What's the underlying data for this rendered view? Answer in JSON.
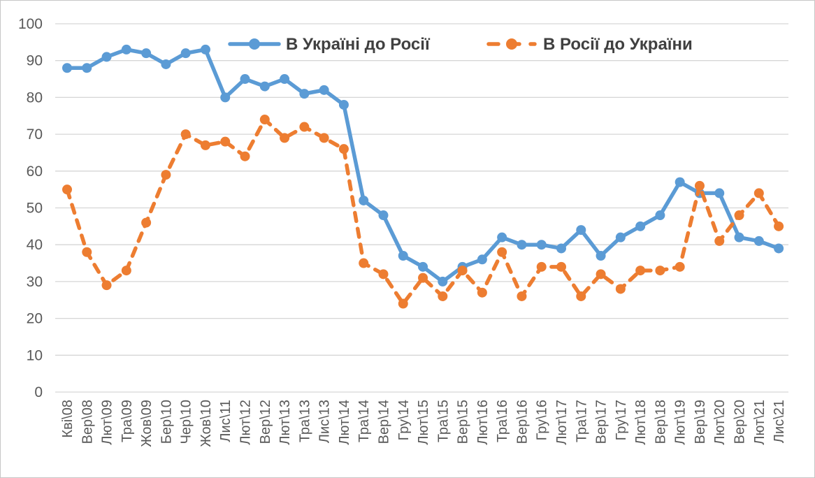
{
  "chart_data": {
    "type": "line",
    "title": "",
    "xlabel": "",
    "ylabel": "",
    "ylim": [
      0,
      100
    ],
    "yticks": [
      0,
      10,
      20,
      30,
      40,
      50,
      60,
      70,
      80,
      90,
      100
    ],
    "grid": "horizontal-on",
    "grid_color": "#d6d6d6",
    "axis_text_color": "#595959",
    "legend_text_color": "#404040",
    "legend_position": "top-inside",
    "categories": [
      "Кві\\08",
      "Вер\\08",
      "Лют\\09",
      "Тра\\09",
      "Жов\\09",
      "Бер\\10",
      "Чер\\10",
      "Жов\\10",
      "Лис\\11",
      "Лют\\12",
      "Вер\\12",
      "Лют\\13",
      "Тра\\13",
      "Лис\\13",
      "Лют\\14",
      "Тра\\14",
      "Вер\\14",
      "Гру\\14",
      "Лют\\15",
      "Тра\\15",
      "Вер\\15",
      "Лют\\16",
      "Тра\\16",
      "Вер\\16",
      "Гру\\16",
      "Лют\\17",
      "Тра\\17",
      "Вер\\17",
      "Гру\\17",
      "Лют\\18",
      "Вер\\18",
      "Лют\\19",
      "Вер\\19",
      "Лют\\20",
      "Вер\\20",
      "Лют\\21",
      "Лис\\21"
    ],
    "series": [
      {
        "id": "ua-to-ru",
        "name": "В Україні до Росії",
        "color": "#5b9bd5",
        "line_style": "solid",
        "values": [
          88,
          88,
          91,
          93,
          92,
          89,
          92,
          93,
          80,
          85,
          83,
          85,
          81,
          82,
          78,
          52,
          48,
          37,
          34,
          30,
          34,
          36,
          42,
          40,
          40,
          39,
          44,
          37,
          42,
          45,
          48,
          57,
          54,
          54,
          42,
          41,
          39
        ]
      },
      {
        "id": "ru-to-ua",
        "name": "В Росії до України",
        "color": "#ed7d31",
        "line_style": "dashed",
        "values": [
          55,
          38,
          29,
          33,
          46,
          59,
          70,
          67,
          68,
          64,
          74,
          69,
          72,
          69,
          66,
          35,
          32,
          24,
          31,
          26,
          33,
          27,
          38,
          26,
          34,
          34,
          26,
          32,
          28,
          33,
          33,
          34,
          56,
          41,
          48,
          54,
          45
        ]
      }
    ]
  }
}
